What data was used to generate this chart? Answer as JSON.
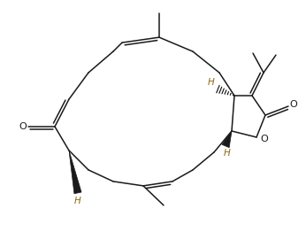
{
  "background": "#ffffff",
  "line_color": "#1a1a1a",
  "H_color": "#8B6914",
  "O_color": "#1a1a1a",
  "fig_width": 3.46,
  "fig_height": 2.62,
  "dpi": 100,
  "lw": 1.1,
  "xlim": [
    0,
    10
  ],
  "ylim": [
    0,
    7.56
  ]
}
